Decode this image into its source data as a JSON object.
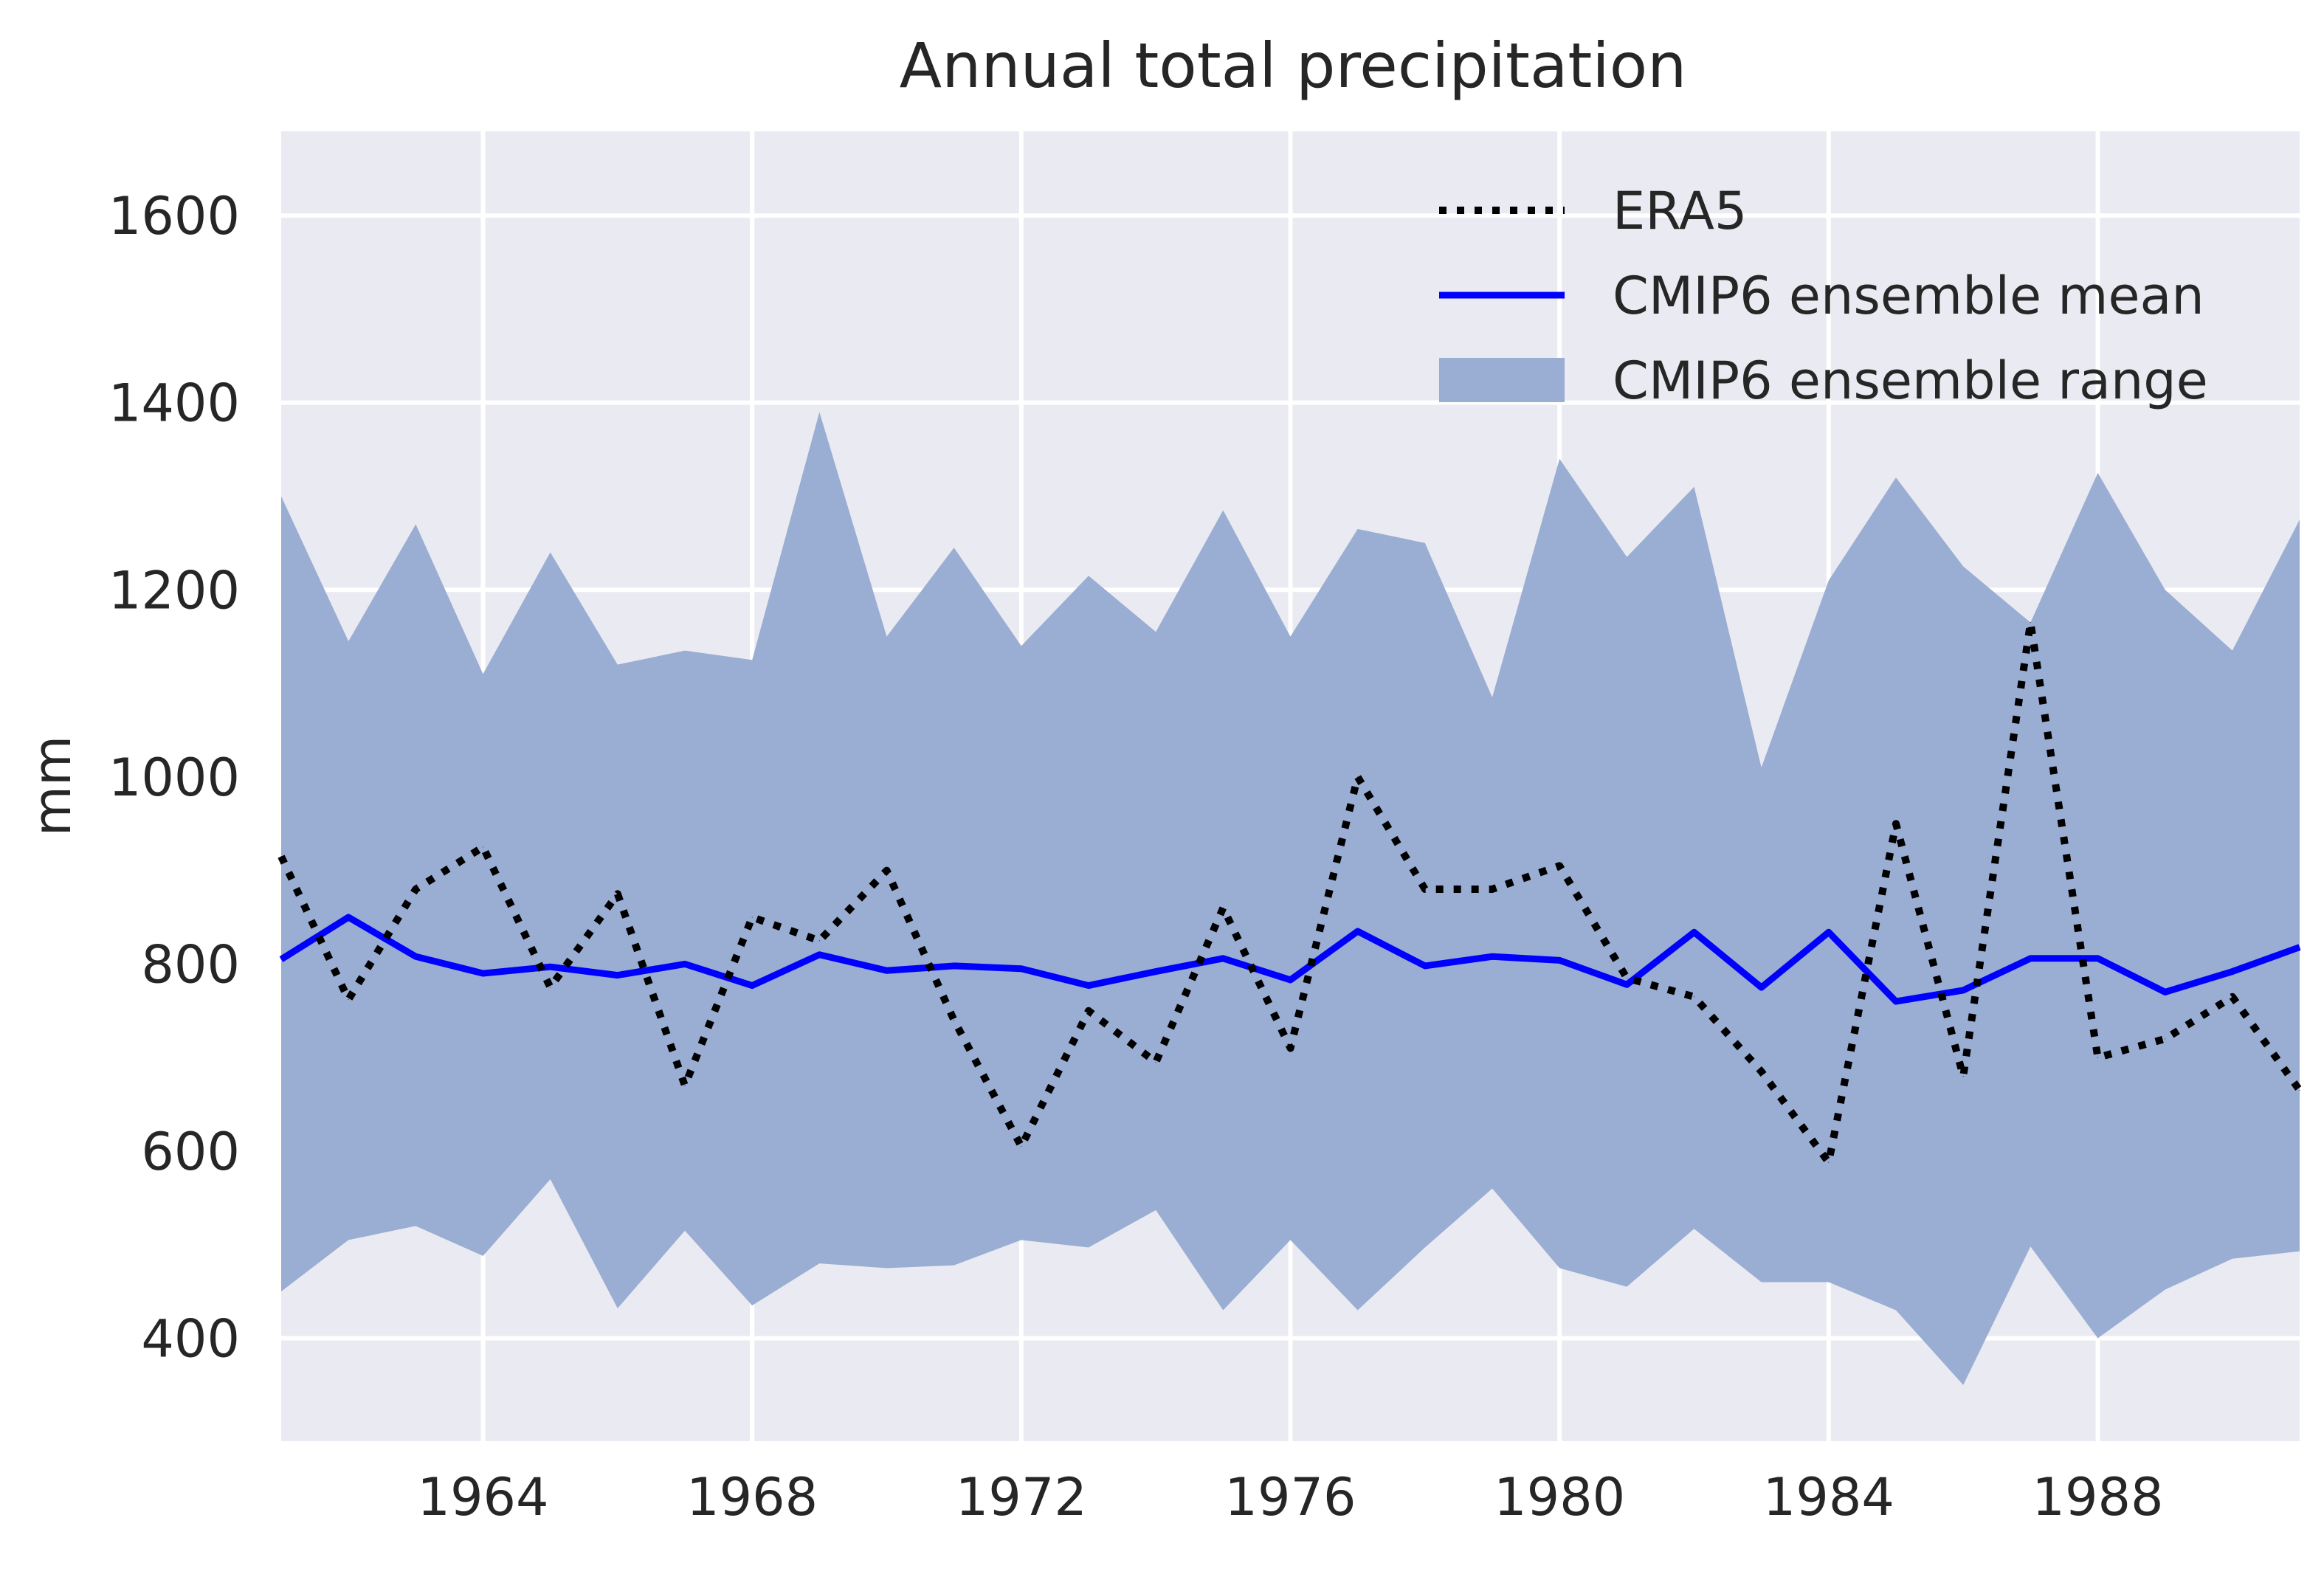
{
  "chart_data": {
    "type": "line",
    "title": "Annual total precipitation",
    "xlabel": "",
    "ylabel": "mm",
    "xlim": [
      1961,
      1991
    ],
    "ylim": [
      290,
      1690
    ],
    "xticks": [
      1964,
      1968,
      1972,
      1976,
      1980,
      1984,
      1988
    ],
    "yticks": [
      400,
      600,
      800,
      1000,
      1200,
      1400,
      1600
    ],
    "grid": true,
    "legend_position": "top-right",
    "x": [
      1961,
      1962,
      1963,
      1964,
      1965,
      1966,
      1967,
      1968,
      1969,
      1970,
      1971,
      1972,
      1973,
      1974,
      1975,
      1976,
      1977,
      1978,
      1979,
      1980,
      1981,
      1982,
      1983,
      1984,
      1985,
      1986,
      1987,
      1988,
      1989,
      1990,
      1991
    ],
    "series": [
      {
        "name": "ERA5",
        "style": "dotted",
        "color": "#000000",
        "values": [
          915,
          762,
          880,
          925,
          775,
          875,
          670,
          850,
          825,
          900,
          740,
          605,
          750,
          695,
          860,
          710,
          1000,
          880,
          880,
          905,
          785,
          765,
          685,
          588,
          950,
          680,
          1165,
          700,
          720,
          765,
          665
        ]
      },
      {
        "name": "CMIP6 ensemble mean",
        "style": "solid",
        "color": "#0000ff",
        "values": [
          805,
          850,
          808,
          790,
          797,
          788,
          800,
          777,
          810,
          793,
          798,
          795,
          777,
          792,
          806,
          783,
          835,
          798,
          808,
          804,
          778,
          834,
          775,
          834,
          760,
          772,
          806,
          806,
          770,
          792,
          818
        ]
      },
      {
        "name": "CMIP6 ensemble range",
        "style": "fill",
        "color": "#9aadd2",
        "upper": [
          1300,
          1145,
          1270,
          1110,
          1240,
          1120,
          1135,
          1125,
          1390,
          1150,
          1245,
          1140,
          1215,
          1155,
          1285,
          1150,
          1265,
          1250,
          1085,
          1340,
          1235,
          1310,
          1010,
          1210,
          1320,
          1225,
          1165,
          1325,
          1200,
          1135,
          1275
        ],
        "lower": [
          450,
          505,
          520,
          488,
          570,
          432,
          515,
          435,
          480,
          475,
          478,
          505,
          497,
          537,
          430,
          505,
          430,
          497,
          560,
          475,
          455,
          517,
          460,
          460,
          430,
          350,
          498,
          400,
          452,
          485,
          493
        ]
      }
    ],
    "colors": {
      "background": "#eaeaf2",
      "grid": "#ffffff",
      "text": "#262626"
    }
  }
}
